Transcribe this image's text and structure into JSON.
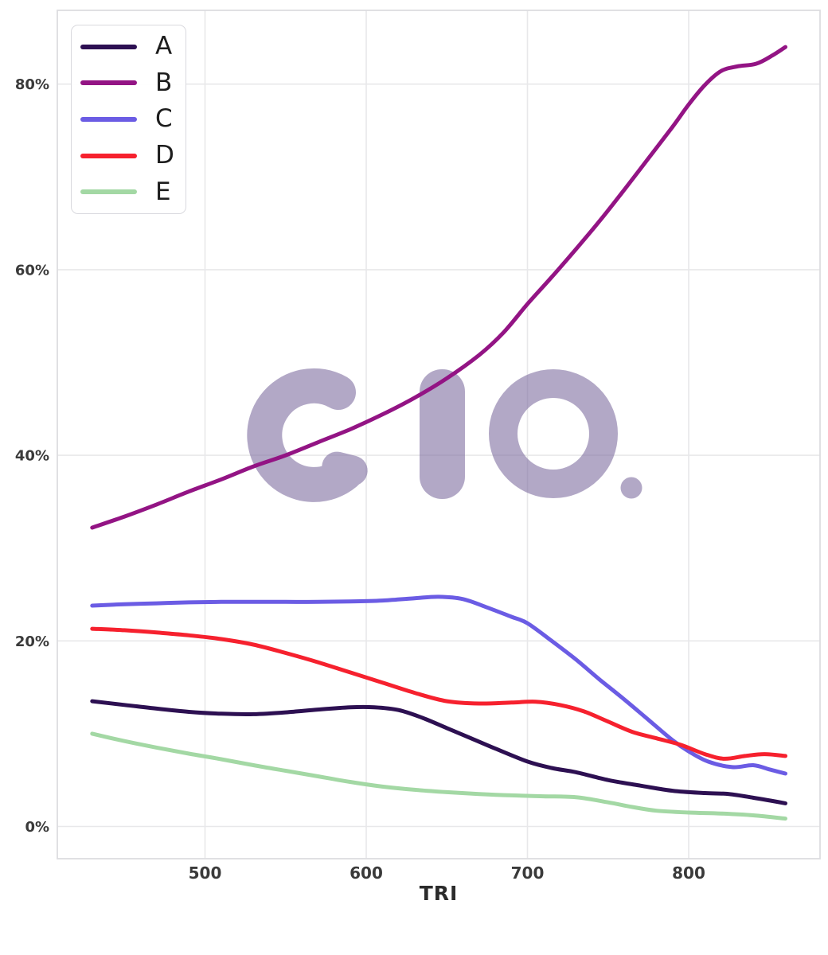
{
  "chart_data": {
    "type": "line",
    "title": "",
    "xlabel": "TRI",
    "ylabel": "",
    "x_ticks": [
      500,
      600,
      700,
      800
    ],
    "y_ticks": [
      {
        "label": "0%",
        "value": 0
      },
      {
        "label": "20%",
        "value": 20
      },
      {
        "label": "40%",
        "value": 40
      },
      {
        "label": "60%",
        "value": 60
      },
      {
        "label": "80%",
        "value": 80
      }
    ],
    "x_range": [
      430,
      860
    ],
    "y_range_pct": [
      -3.4,
      88.0
    ],
    "grid": true,
    "legend_position": "upper-left",
    "watermark_text": "alo.",
    "watermark_color": "#7a689c",
    "grid_color": "#e8e8ea",
    "spine_color": "#dcdce0",
    "series": [
      {
        "label": "A",
        "color": "#2d1052",
        "points": [
          [
            430,
            13.5
          ],
          [
            450,
            13.1
          ],
          [
            470,
            12.7
          ],
          [
            490,
            12.35
          ],
          [
            510,
            12.15
          ],
          [
            530,
            12.1
          ],
          [
            550,
            12.3
          ],
          [
            570,
            12.6
          ],
          [
            590,
            12.85
          ],
          [
            605,
            12.85
          ],
          [
            620,
            12.55
          ],
          [
            635,
            11.7
          ],
          [
            650,
            10.6
          ],
          [
            665,
            9.5
          ],
          [
            680,
            8.4
          ],
          [
            700,
            7.0
          ],
          [
            715,
            6.3
          ],
          [
            730,
            5.85
          ],
          [
            750,
            5.0
          ],
          [
            770,
            4.4
          ],
          [
            790,
            3.85
          ],
          [
            810,
            3.6
          ],
          [
            825,
            3.5
          ],
          [
            840,
            3.1
          ],
          [
            860,
            2.5
          ]
        ]
      },
      {
        "label": "B",
        "color": "#931484",
        "points": [
          [
            430,
            32.2
          ],
          [
            450,
            33.4
          ],
          [
            470,
            34.7
          ],
          [
            490,
            36.1
          ],
          [
            510,
            37.4
          ],
          [
            530,
            38.8
          ],
          [
            550,
            40.0
          ],
          [
            570,
            41.4
          ],
          [
            590,
            42.8
          ],
          [
            610,
            44.4
          ],
          [
            630,
            46.2
          ],
          [
            650,
            48.3
          ],
          [
            670,
            50.8
          ],
          [
            685,
            53.2
          ],
          [
            700,
            56.3
          ],
          [
            715,
            59.2
          ],
          [
            730,
            62.2
          ],
          [
            745,
            65.3
          ],
          [
            760,
            68.6
          ],
          [
            775,
            72.0
          ],
          [
            790,
            75.4
          ],
          [
            800,
            77.8
          ],
          [
            810,
            79.9
          ],
          [
            820,
            81.4
          ],
          [
            830,
            81.9
          ],
          [
            842,
            82.2
          ],
          [
            852,
            83.1
          ],
          [
            860,
            84.0
          ]
        ]
      },
      {
        "label": "C",
        "color": "#6b5ce4",
        "points": [
          [
            430,
            23.8
          ],
          [
            450,
            23.95
          ],
          [
            470,
            24.05
          ],
          [
            490,
            24.15
          ],
          [
            510,
            24.2
          ],
          [
            530,
            24.2
          ],
          [
            550,
            24.2
          ],
          [
            570,
            24.2
          ],
          [
            590,
            24.25
          ],
          [
            610,
            24.35
          ],
          [
            630,
            24.6
          ],
          [
            645,
            24.75
          ],
          [
            660,
            24.5
          ],
          [
            675,
            23.6
          ],
          [
            690,
            22.6
          ],
          [
            700,
            21.9
          ],
          [
            715,
            20.0
          ],
          [
            730,
            18.0
          ],
          [
            745,
            15.8
          ],
          [
            760,
            13.7
          ],
          [
            775,
            11.5
          ],
          [
            790,
            9.3
          ],
          [
            800,
            8.1
          ],
          [
            812,
            7.0
          ],
          [
            827,
            6.4
          ],
          [
            840,
            6.6
          ],
          [
            850,
            6.15
          ],
          [
            860,
            5.7
          ]
        ]
      },
      {
        "label": "D",
        "color": "#f6212e",
        "points": [
          [
            430,
            21.3
          ],
          [
            450,
            21.15
          ],
          [
            470,
            20.9
          ],
          [
            490,
            20.6
          ],
          [
            510,
            20.2
          ],
          [
            530,
            19.6
          ],
          [
            550,
            18.7
          ],
          [
            570,
            17.7
          ],
          [
            590,
            16.6
          ],
          [
            610,
            15.5
          ],
          [
            630,
            14.4
          ],
          [
            650,
            13.5
          ],
          [
            670,
            13.25
          ],
          [
            690,
            13.35
          ],
          [
            705,
            13.45
          ],
          [
            720,
            13.1
          ],
          [
            735,
            12.4
          ],
          [
            750,
            11.3
          ],
          [
            765,
            10.2
          ],
          [
            780,
            9.5
          ],
          [
            795,
            8.8
          ],
          [
            810,
            7.8
          ],
          [
            822,
            7.3
          ],
          [
            835,
            7.6
          ],
          [
            847,
            7.8
          ],
          [
            860,
            7.6
          ]
        ]
      },
      {
        "label": "E",
        "color": "#a3d8a4",
        "points": [
          [
            430,
            10.0
          ],
          [
            450,
            9.2
          ],
          [
            470,
            8.5
          ],
          [
            490,
            7.85
          ],
          [
            510,
            7.25
          ],
          [
            530,
            6.6
          ],
          [
            550,
            6.0
          ],
          [
            570,
            5.4
          ],
          [
            590,
            4.8
          ],
          [
            610,
            4.3
          ],
          [
            630,
            3.95
          ],
          [
            650,
            3.7
          ],
          [
            670,
            3.5
          ],
          [
            690,
            3.35
          ],
          [
            710,
            3.25
          ],
          [
            730,
            3.15
          ],
          [
            750,
            2.6
          ],
          [
            765,
            2.1
          ],
          [
            780,
            1.7
          ],
          [
            800,
            1.5
          ],
          [
            820,
            1.4
          ],
          [
            840,
            1.2
          ],
          [
            860,
            0.85
          ]
        ]
      }
    ]
  }
}
